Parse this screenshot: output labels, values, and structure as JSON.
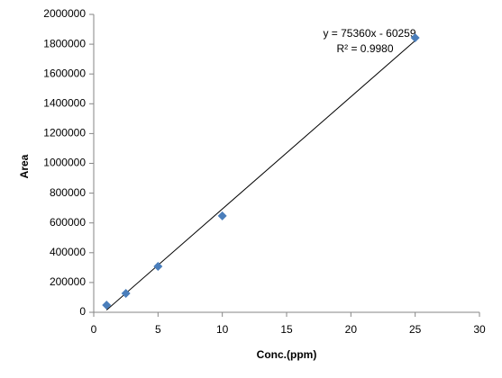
{
  "chart_data": {
    "type": "scatter",
    "x_label": "Conc.(ppm)",
    "y_label": "Area",
    "series": [
      {
        "name": "Area",
        "color": "#4a7ebb",
        "x": [
          1,
          2.5,
          5,
          10,
          25
        ],
        "values": [
          48000,
          127000,
          308000,
          647000,
          1843000
        ]
      }
    ],
    "trendline": {
      "slope": 75360,
      "intercept": -60259,
      "equation": "y = 75360x - 60259",
      "r2": "R² = 0.9980",
      "color": "#000000"
    },
    "xlim": [
      0,
      30
    ],
    "xticks": [
      0,
      5,
      10,
      15,
      20,
      25,
      30
    ],
    "ylim": [
      0,
      2000000
    ],
    "yticks": [
      0,
      200000,
      400000,
      600000,
      800000,
      1000000,
      1200000,
      1400000,
      1600000,
      1800000,
      2000000
    ],
    "grid": false
  }
}
